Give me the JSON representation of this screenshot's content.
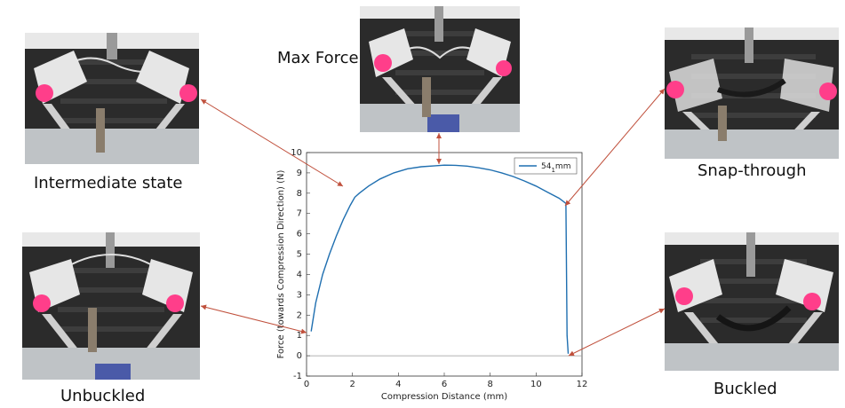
{
  "states": {
    "intermediate": {
      "caption": "Intermediate state"
    },
    "max_force": {
      "caption": "Max Force"
    },
    "snap_through": {
      "caption": "Snap-through"
    },
    "unbuckled": {
      "caption": "Unbuckled"
    },
    "buckled": {
      "caption": "Buckled"
    }
  },
  "colors": {
    "series": "#1f6fb0",
    "arrow": "#c0503c",
    "cap": "#ff3e8a",
    "frame": "#e6e6e6",
    "rail": "#d0d0d0"
  },
  "chart_data": {
    "type": "line",
    "xlabel": "Compression Distance (mm)",
    "ylabel": "Force (towards Compression Direction) (N)",
    "xlim": [
      0,
      12
    ],
    "ylim": [
      -1,
      10
    ],
    "xticks": [
      0,
      2,
      4,
      6,
      8,
      10,
      12
    ],
    "yticks": [
      -1,
      0,
      1,
      2,
      3,
      4,
      5,
      6,
      7,
      8,
      9,
      10
    ],
    "legend_placement": "top-right",
    "series": [
      {
        "name": "54",
        "name_sub": "1",
        "name_suffix": "mm",
        "x": [
          0.2,
          0.4,
          0.7,
          1.0,
          1.3,
          1.6,
          1.9,
          2.1,
          2.3,
          2.7,
          3.2,
          3.8,
          4.4,
          5.0,
          5.6,
          6.0,
          6.5,
          7.0,
          7.5,
          8.0,
          8.5,
          9.0,
          9.5,
          10.0,
          10.5,
          11.0,
          11.3,
          11.32,
          11.35,
          11.4
        ],
        "y": [
          1.2,
          2.6,
          4.0,
          5.0,
          5.9,
          6.7,
          7.4,
          7.8,
          8.0,
          8.35,
          8.7,
          9.0,
          9.2,
          9.3,
          9.35,
          9.38,
          9.37,
          9.33,
          9.25,
          9.15,
          9.0,
          8.82,
          8.6,
          8.35,
          8.05,
          7.75,
          7.5,
          5.0,
          1.0,
          0.1
        ]
      }
    ],
    "baseline": 0
  }
}
